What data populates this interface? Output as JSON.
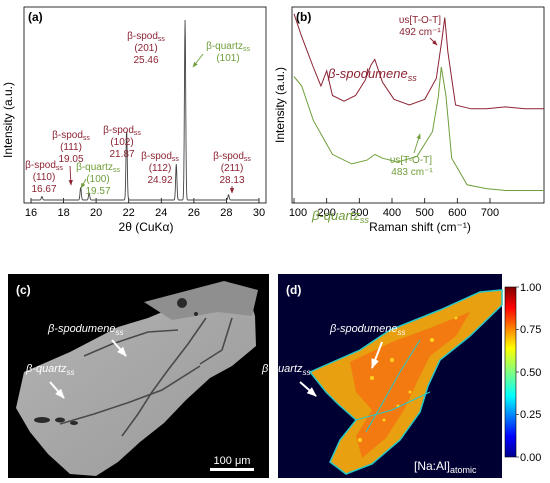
{
  "panels": {
    "a": {
      "label": "(a)"
    },
    "b": {
      "label": "(b)"
    },
    "c": {
      "label": "(c)"
    },
    "d": {
      "label": "(d)"
    }
  },
  "xrd": {
    "ylabel": "Intensity (a.u.)",
    "xlabel": "2θ (CuKα)",
    "ticks": [
      "16",
      "18",
      "20",
      "22",
      "24",
      "26",
      "28",
      "30"
    ],
    "annotations": [
      {
        "lines": [
          "β-spod",
          "(110)",
          "16.67"
        ],
        "sub": "ss",
        "color": "#8b2332"
      },
      {
        "lines": [
          "β-spod",
          "(111)",
          "19.05"
        ],
        "sub": "ss",
        "color": "#8b2332"
      },
      {
        "lines": [
          "β-quartz",
          "(100)",
          "19.57"
        ],
        "sub": "ss",
        "color": "#6f9e3a"
      },
      {
        "lines": [
          "β-spod",
          "(102)",
          "21.87"
        ],
        "sub": "ss",
        "color": "#8b2332"
      },
      {
        "lines": [
          "β-spod",
          "(112)",
          "24.92"
        ],
        "sub": "ss",
        "color": "#8b2332"
      },
      {
        "lines": [
          "β-spod",
          "(201)",
          "25.46"
        ],
        "sub": "ss",
        "color": "#8b2332"
      },
      {
        "lines": [
          "β-quartz",
          "(101)",
          ""
        ],
        "sub": "ss",
        "color": "#6f9e3a"
      },
      {
        "lines": [
          "β-spod",
          "(211)",
          "28.13"
        ],
        "sub": "ss",
        "color": "#8b2332"
      }
    ]
  },
  "raman": {
    "ylabel": "Intensity (a.u.)",
    "xlabel": "Raman shift (cm⁻¹)",
    "ticks": [
      "100",
      "200",
      "300",
      "400",
      "500",
      "600",
      "700"
    ],
    "spod_label": "β-spodumene",
    "spod_sub": "ss",
    "quartz_label": "β-quartz",
    "quartz_sub": "ss",
    "spod_mode": "υs[T-O-T]",
    "spod_mode_value": "492 cm⁻¹",
    "quartz_mode": "υs[T-O-T]",
    "quartz_mode_value": "483 cm⁻¹"
  },
  "sem": {
    "label_spod": "β-spodumene",
    "label_quartz": "β-quartz",
    "label_sub": "ss",
    "scale_bar": "100 μm"
  },
  "map": {
    "label_spod": "β-spodumene",
    "label_quartz": "β-quartz",
    "label_sub": "ss",
    "quantity": "[Na:Al]",
    "quantity_sub": "atomic",
    "colorbar_ticks": [
      "1.00",
      "0.75",
      "0.50",
      "0.25",
      "0.00"
    ]
  },
  "chart_data": [
    {
      "type": "line",
      "title": "(a)",
      "xlabel": "2θ (CuKα)",
      "ylabel": "Intensity (a.u.)",
      "xlim": [
        16,
        30
      ],
      "series": [
        {
          "peaks": [
            {
              "x": 16.67,
              "rel_intensity": 0.02
            },
            {
              "x": 19.05,
              "rel_intensity": 0.07
            },
            {
              "x": 19.57,
              "rel_intensity": 0.04
            },
            {
              "x": 21.87,
              "rel_intensity": 0.39
            },
            {
              "x": 24.92,
              "rel_intensity": 0.2
            },
            {
              "x": 25.46,
              "rel_intensity": 1.0
            },
            {
              "x": 28.13,
              "rel_intensity": 0.03
            }
          ]
        }
      ]
    },
    {
      "type": "line",
      "title": "(b)",
      "xlabel": "Raman shift (cm⁻¹)",
      "ylabel": "Intensity (a.u.)",
      "xlim": [
        100,
        750
      ],
      "series": [
        {
          "name": "β-spodumene",
          "color": "#8b2332",
          "x": [
            100,
            120,
            150,
            170,
            185,
            200,
            230,
            260,
            285,
            300,
            310,
            330,
            360,
            400,
            440,
            470,
            485,
            492,
            500,
            520,
            560,
            600,
            650,
            700,
            750
          ],
          "y": [
            0.98,
            0.86,
            0.7,
            0.6,
            0.68,
            0.55,
            0.52,
            0.55,
            0.63,
            0.71,
            0.74,
            0.62,
            0.53,
            0.5,
            0.53,
            0.64,
            0.85,
            0.96,
            0.78,
            0.5,
            0.48,
            0.48,
            0.49,
            0.48,
            0.48
          ]
        },
        {
          "name": "β-quartz",
          "color": "#6f9e3a",
          "x": [
            100,
            120,
            150,
            200,
            250,
            290,
            310,
            330,
            370,
            420,
            460,
            475,
            483,
            495,
            510,
            550,
            600,
            650,
            700,
            750
          ],
          "y": [
            0.65,
            0.6,
            0.42,
            0.24,
            0.19,
            0.21,
            0.24,
            0.22,
            0.2,
            0.23,
            0.36,
            0.54,
            0.7,
            0.55,
            0.22,
            0.08,
            0.06,
            0.05,
            0.05,
            0.05
          ]
        }
      ]
    }
  ]
}
